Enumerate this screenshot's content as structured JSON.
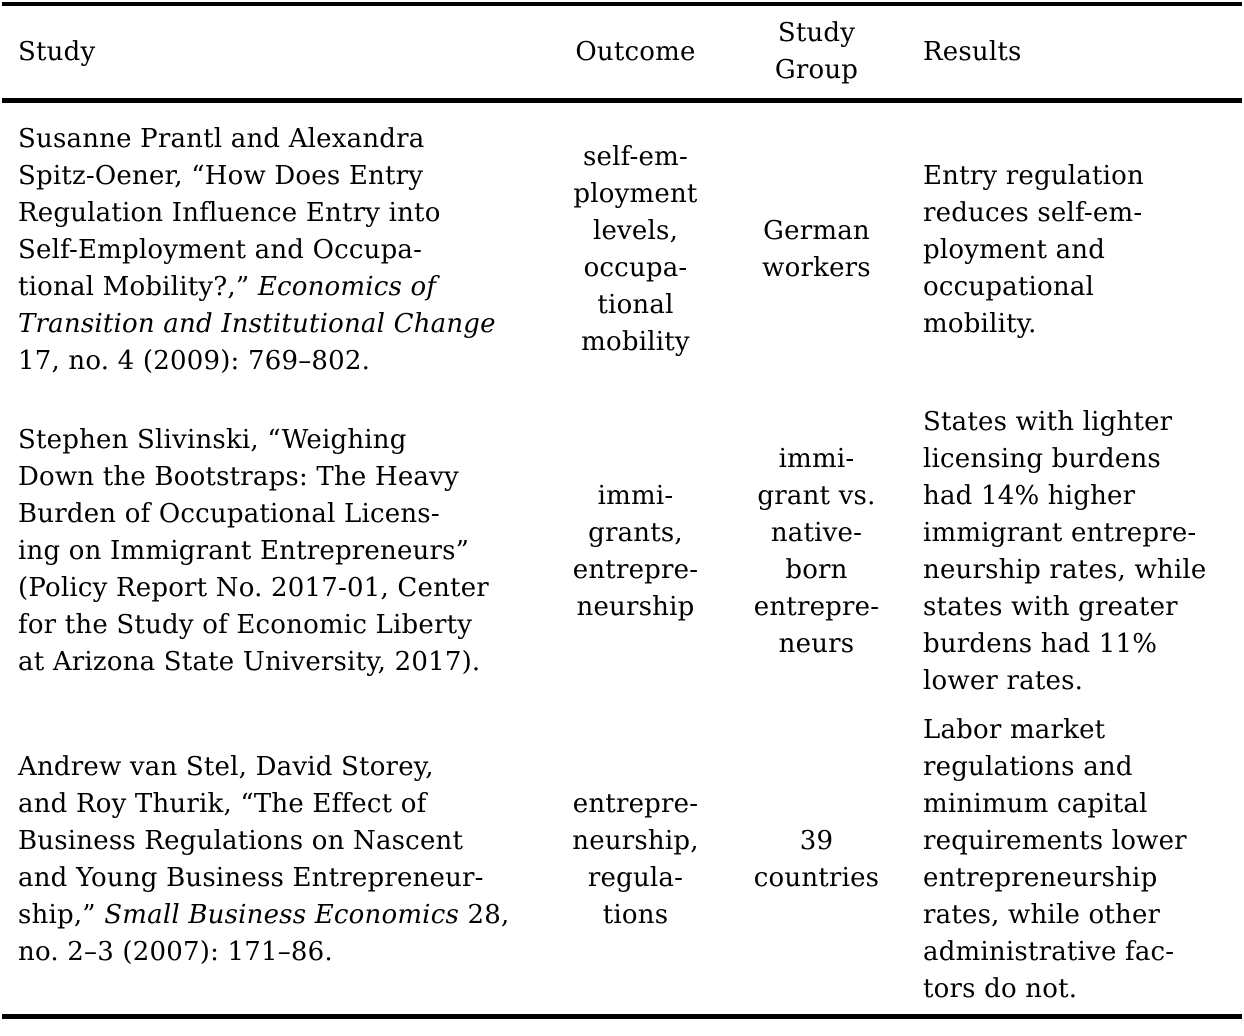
{
  "colors": {
    "text": "#000000",
    "background": "#ffffff",
    "rule": "#000000"
  },
  "header": {
    "study": "Study",
    "outcome": "Outcome",
    "study_group": "Study\nGroup",
    "results": "Results"
  },
  "rows": [
    {
      "study_runs": [
        {
          "text": "Susanne Prantl and Alexandra\nSpitz-Oener, “How Does Entry\nRegulation Influence Entry into\nSelf-Employment and Occupa-\ntional Mobility?,” ",
          "italic": false
        },
        {
          "text": "Economics of\nTransition and Institutional Change",
          "italic": true
        },
        {
          "text": "\n17, no. 4 (2009): 769–802.",
          "italic": false
        }
      ],
      "outcome": "self-em-\nployment\nlevels,\noccupa-\ntional\nmobility",
      "study_group": "German\nworkers",
      "results": "Entry regulation\nreduces self-em-\nployment and\noccupational\nmobility."
    },
    {
      "study_runs": [
        {
          "text": "Stephen Slivinski, “Weighing\nDown the Bootstraps: The Heavy\nBurden of Occupational Licens-\ning on Immigrant Entrepreneurs”\n(Policy Report No. 2017-01, Center\nfor the Study of Economic Liberty\nat Arizona State University, 2017).",
          "italic": false
        }
      ],
      "outcome": "immi-\ngrants,\nentrepre-\nneurship",
      "study_group": "immi-\ngrant vs.\nnative-\nborn\nentrepre-\nneurs",
      "results": "States with lighter\nlicensing burdens\nhad 14% higher\nimmigrant entrepre-\nneurship rates, while\nstates with greater\nburdens had 11%\nlower rates."
    },
    {
      "study_runs": [
        {
          "text": "Andrew van Stel, David Storey,\nand Roy Thurik, “The Effect of\nBusiness Regulations on Nascent\nand Young Business Entrepreneur-\nship,” ",
          "italic": false
        },
        {
          "text": "Small Business Economics",
          "italic": true
        },
        {
          "text": " 28,\nno. 2–3 (2007): 171–86.",
          "italic": false
        }
      ],
      "outcome": "entrepre-\nneurship,\nregula-\ntions",
      "study_group": "39\ncountries",
      "results": "Labor market\nregulations and\nminimum capital\nrequirements lower\nentrepreneurship\nrates, while other\nadministrative fac-\ntors do not."
    }
  ]
}
